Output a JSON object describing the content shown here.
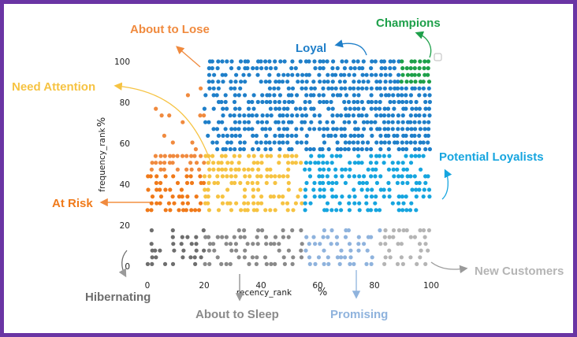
{
  "chart_data": {
    "type": "scatter",
    "xlabel": "recency_rank",
    "xlabel_unit": "%",
    "ylabel": "frequency_rank",
    "ylabel_unit": "%",
    "xlim": [
      0,
      100
    ],
    "ylim": [
      0,
      100
    ],
    "x_ticks": [
      "0",
      "20",
      "40",
      "60",
      "80",
      "100"
    ],
    "y_ticks": [
      "0",
      "20",
      "40",
      "60",
      "80",
      "100"
    ],
    "grid": false,
    "segments": [
      {
        "name": "Champions",
        "color": "#1ea04a"
      },
      {
        "name": "Loyal",
        "color": "#1f7fc9"
      },
      {
        "name": "Potential Loyalists",
        "color": "#16a5df"
      },
      {
        "name": "New Customers",
        "color": "#b5b5b5"
      },
      {
        "name": "Promising",
        "color": "#8fb3dd"
      },
      {
        "name": "Need Attention",
        "color": "#f6c342"
      },
      {
        "name": "About to Lose",
        "color": "#f08a3e"
      },
      {
        "name": "At Risk",
        "color": "#f07a1a"
      },
      {
        "name": "Hibernating",
        "color": "#6e6e6e"
      },
      {
        "name": "About to Sleep",
        "color": "#8a8a8a"
      }
    ],
    "regions": [
      {
        "segment": "Champions",
        "x": [
          89,
          100
        ],
        "y": [
          89,
          100
        ]
      },
      {
        "segment": "Loyal",
        "x": [
          20,
          100
        ],
        "y": [
          56,
          100
        ]
      },
      {
        "segment": "Potential Loyalists",
        "x": [
          55,
          100
        ],
        "y": [
          25,
          56
        ]
      },
      {
        "segment": "New Customers",
        "x": [
          82,
          100
        ],
        "y": [
          0,
          20
        ]
      },
      {
        "segment": "Promising",
        "x": [
          55,
          82
        ],
        "y": [
          0,
          20
        ]
      },
      {
        "segment": "Need Attention",
        "x": [
          20,
          55
        ],
        "y": [
          25,
          56
        ]
      },
      {
        "segment": "About to Lose",
        "x": [
          0,
          20
        ],
        "y": [
          45,
          100
        ]
      },
      {
        "segment": "At Risk",
        "x": [
          0,
          20
        ],
        "y": [
          25,
          45
        ]
      },
      {
        "segment": "Hibernating",
        "x": [
          0,
          55
        ],
        "y": [
          0,
          20
        ]
      }
    ]
  }
}
